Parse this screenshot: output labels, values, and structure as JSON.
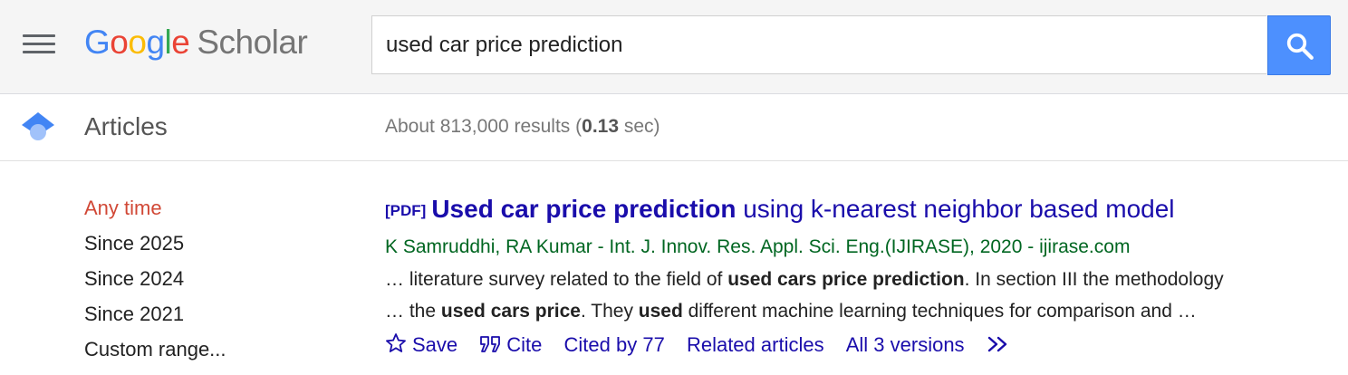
{
  "header": {
    "logo_google": [
      "G",
      "o",
      "o",
      "g",
      "l",
      "e"
    ],
    "logo_scholar": "Scholar",
    "search_value": "used car price prediction"
  },
  "subheader": {
    "section_label": "Articles",
    "results_prefix": "About 813,000 results (",
    "results_time": "0.13",
    "results_suffix": " sec)"
  },
  "sidebar": {
    "items": [
      {
        "label": "Any time"
      },
      {
        "label": "Since 2025"
      },
      {
        "label": "Since 2024"
      },
      {
        "label": "Since 2021"
      },
      {
        "label": "Custom range..."
      }
    ]
  },
  "result": {
    "pdf_tag": "[PDF]",
    "title_bold": "Used car price prediction",
    "title_rest": " using k-nearest neighbor based model",
    "authors": "K Samruddhi, RA Kumar - Int. J. Innov. Res. Appl. Sci. Eng.(IJIRASE), 2020 - ijirase.com",
    "snippet1_a": "… literature survey related to the field of ",
    "snippet1_b": "used cars price prediction",
    "snippet1_c": ". In section III the methodology",
    "snippet2_a": "… the ",
    "snippet2_b": "used cars price",
    "snippet2_c": ". They ",
    "snippet2_d": "used",
    "snippet2_e": " different machine learning techniques for comparison and …",
    "actions": {
      "save": "Save",
      "cite": "Cite",
      "cited_by": "Cited by 77",
      "related": "Related articles",
      "versions": "All 3 versions"
    }
  },
  "colors": {
    "link": "#1a0dab",
    "author_green": "#006621",
    "active_filter": "#d14836",
    "search_button": "#4d90fe"
  }
}
